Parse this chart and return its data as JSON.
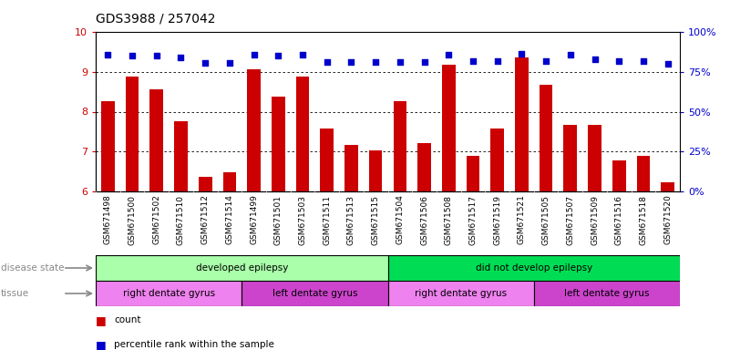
{
  "title": "GDS3988 / 257042",
  "samples": [
    "GSM671498",
    "GSM671500",
    "GSM671502",
    "GSM671510",
    "GSM671512",
    "GSM671514",
    "GSM671499",
    "GSM671501",
    "GSM671503",
    "GSM671511",
    "GSM671513",
    "GSM671515",
    "GSM671504",
    "GSM671506",
    "GSM671508",
    "GSM671517",
    "GSM671519",
    "GSM671521",
    "GSM671505",
    "GSM671507",
    "GSM671509",
    "GSM671516",
    "GSM671518",
    "GSM671520"
  ],
  "bar_values": [
    8.27,
    8.87,
    8.57,
    7.77,
    6.37,
    6.47,
    9.07,
    8.37,
    8.87,
    7.57,
    7.17,
    7.02,
    8.27,
    7.22,
    9.17,
    6.9,
    7.57,
    9.37,
    8.67,
    7.67,
    7.67,
    6.77,
    6.9,
    6.22
  ],
  "percentile_values": [
    9.42,
    9.4,
    9.4,
    9.35,
    9.22,
    9.22,
    9.42,
    9.4,
    9.42,
    9.25,
    9.25,
    9.25,
    9.25,
    9.25,
    9.42,
    9.28,
    9.28,
    9.45,
    9.28,
    9.42,
    9.32,
    9.28,
    9.28,
    9.2
  ],
  "bar_color": "#cc0000",
  "percentile_color": "#0000cc",
  "ylim_left": [
    6,
    10
  ],
  "yticks_left": [
    6,
    7,
    8,
    9,
    10
  ],
  "yticks_right_labels": [
    "0%",
    "25%",
    "50%",
    "75%",
    "100%"
  ],
  "disease_groups": [
    {
      "label": "developed epilepsy",
      "start": 0,
      "end": 12,
      "color": "#aaffaa"
    },
    {
      "label": "did not develop epilepsy",
      "start": 12,
      "end": 24,
      "color": "#00dd55"
    }
  ],
  "tissue_groups": [
    {
      "label": "right dentate gyrus",
      "start": 0,
      "end": 6,
      "color": "#ee82ee"
    },
    {
      "label": "left dentate gyrus",
      "start": 6,
      "end": 12,
      "color": "#cc44cc"
    },
    {
      "label": "right dentate gyrus",
      "start": 12,
      "end": 18,
      "color": "#ee82ee"
    },
    {
      "label": "left dentate gyrus",
      "start": 18,
      "end": 24,
      "color": "#cc44cc"
    }
  ],
  "disease_state_label": "disease state",
  "tissue_label": "tissue",
  "legend_bar_label": "count",
  "legend_percentile_label": "percentile rank within the sample",
  "background_color": "#ffffff",
  "tick_label_gray": "#888888"
}
